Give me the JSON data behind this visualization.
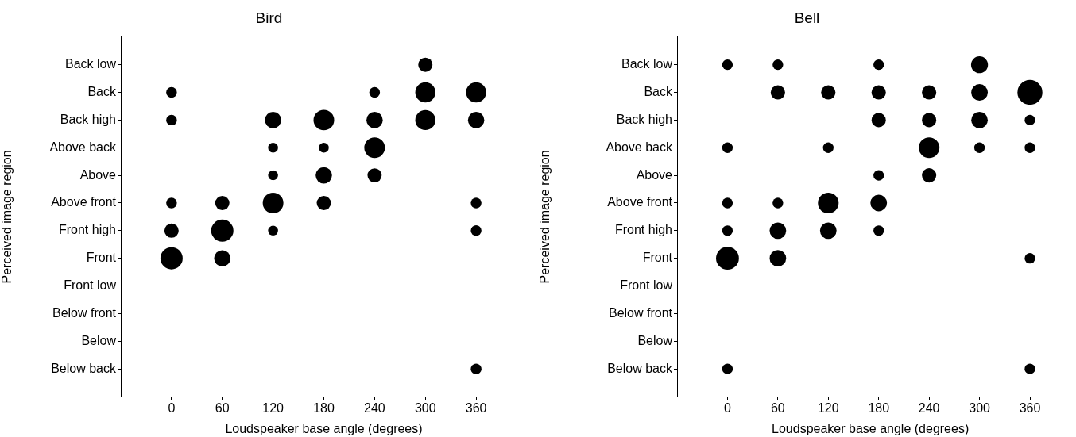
{
  "chart_data": [
    {
      "type": "bubble",
      "orientation": "horizontal",
      "title": "Bird",
      "xlabel": "Loudspeaker base angle (degrees)",
      "ylabel": "Perceived image region",
      "categories": [
        "Back low",
        "Back",
        "Back high",
        "Above back",
        "Above",
        "Above front",
        "Front high",
        "Front",
        "Front low",
        "Below front",
        "Below",
        "Below back"
      ],
      "xlim": [
        -60,
        420
      ],
      "xticks": [
        0,
        60,
        120,
        180,
        240,
        300,
        360
      ],
      "series": [
        {
          "color": "#000000",
          "values": [
            null,
            0,
            0,
            null,
            null,
            0,
            0,
            0,
            null,
            null,
            null,
            null
          ],
          "sizes": [
            null,
            0.23,
            0.23,
            null,
            null,
            0.23,
            0.41,
            1,
            null,
            null,
            null,
            null
          ]
        },
        {
          "color": "#000000",
          "values": [
            null,
            null,
            null,
            null,
            null,
            60,
            60,
            60,
            null,
            null,
            null,
            null
          ],
          "sizes": [
            null,
            null,
            null,
            null,
            null,
            0.41,
            1,
            0.54,
            null,
            null,
            null,
            null
          ]
        },
        {
          "color": "#000000",
          "values": [
            null,
            null,
            120,
            120,
            120,
            120,
            120,
            null,
            null,
            null,
            null,
            null
          ],
          "sizes": [
            null,
            null,
            0.54,
            0.2,
            0.2,
            0.86,
            0.2,
            null,
            null,
            null,
            null,
            null
          ]
        },
        {
          "color": "#000000",
          "values": [
            null,
            null,
            180,
            180,
            180,
            180,
            null,
            null,
            null,
            null,
            null,
            null
          ],
          "sizes": [
            null,
            null,
            0.86,
            0.2,
            0.54,
            0.41,
            null,
            null,
            null,
            null,
            null,
            null
          ]
        },
        {
          "color": "#000000",
          "values": [
            null,
            240,
            240,
            240,
            240,
            null,
            null,
            null,
            null,
            null,
            null,
            null
          ],
          "sizes": [
            null,
            0.23,
            0.54,
            0.86,
            0.41,
            null,
            null,
            null,
            null,
            null,
            null,
            null
          ]
        },
        {
          "color": "#000000",
          "values": [
            300,
            300,
            300,
            null,
            null,
            null,
            null,
            null,
            null,
            null,
            null,
            null
          ],
          "sizes": [
            0.41,
            0.82,
            0.82,
            null,
            null,
            null,
            null,
            null,
            null,
            null,
            null,
            null
          ]
        },
        {
          "color": "#000000",
          "values": [
            null,
            360,
            360,
            null,
            null,
            360,
            360,
            null,
            null,
            null,
            null,
            360
          ],
          "sizes": [
            null,
            0.82,
            0.54,
            null,
            null,
            0.23,
            0.23,
            null,
            null,
            null,
            null,
            0.23
          ]
        }
      ]
    },
    {
      "type": "bubble",
      "orientation": "horizontal",
      "title": "Bell",
      "xlabel": "Loudspeaker base angle (degrees)",
      "ylabel": "Perceived image region",
      "categories": [
        "Back low",
        "Back",
        "Back high",
        "Above back",
        "Above",
        "Above front",
        "Front high",
        "Front",
        "Front low",
        "Below front",
        "Below",
        "Below back"
      ],
      "xlim": [
        -60,
        400
      ],
      "xticks": [
        0,
        60,
        120,
        180,
        240,
        300,
        360
      ],
      "series": [
        {
          "color": "#000000",
          "values": [
            0,
            null,
            null,
            0,
            null,
            0,
            0,
            0,
            null,
            null,
            null,
            0
          ],
          "sizes": [
            0.18,
            null,
            null,
            0.18,
            null,
            0.18,
            0.18,
            0.84,
            null,
            null,
            null,
            0.18
          ]
        },
        {
          "color": "#000000",
          "values": [
            60,
            60,
            null,
            null,
            null,
            60,
            60,
            60,
            null,
            null,
            null,
            null
          ],
          "sizes": [
            0.18,
            0.33,
            null,
            null,
            null,
            0.18,
            0.44,
            0.44,
            null,
            null,
            null,
            null
          ]
        },
        {
          "color": "#000000",
          "values": [
            null,
            120,
            null,
            120,
            null,
            120,
            120,
            null,
            null,
            null,
            null,
            null
          ],
          "sizes": [
            null,
            0.33,
            null,
            0.18,
            null,
            0.69,
            0.44,
            null,
            null,
            null,
            null,
            null
          ]
        },
        {
          "color": "#000000",
          "values": [
            180,
            180,
            180,
            null,
            180,
            180,
            180,
            null,
            null,
            null,
            null,
            null
          ],
          "sizes": [
            0.18,
            0.33,
            0.33,
            null,
            0.18,
            0.44,
            0.18,
            null,
            null,
            null,
            null,
            null
          ]
        },
        {
          "color": "#000000",
          "values": [
            null,
            240,
            240,
            240,
            240,
            null,
            null,
            null,
            null,
            null,
            null,
            null
          ],
          "sizes": [
            null,
            0.33,
            0.33,
            0.69,
            0.33,
            null,
            null,
            null,
            null,
            null,
            null,
            null
          ]
        },
        {
          "color": "#000000",
          "values": [
            300,
            300,
            300,
            300,
            null,
            null,
            null,
            null,
            null,
            null,
            null,
            null
          ],
          "sizes": [
            0.46,
            0.44,
            0.44,
            0.18,
            null,
            null,
            null,
            null,
            null,
            null,
            null,
            null
          ]
        },
        {
          "color": "#000000",
          "values": [
            null,
            360,
            360,
            360,
            null,
            null,
            null,
            360,
            null,
            null,
            null,
            360
          ],
          "sizes": [
            null,
            1,
            0.18,
            0.18,
            null,
            null,
            null,
            0.18,
            null,
            null,
            null,
            0.18
          ]
        }
      ]
    }
  ]
}
